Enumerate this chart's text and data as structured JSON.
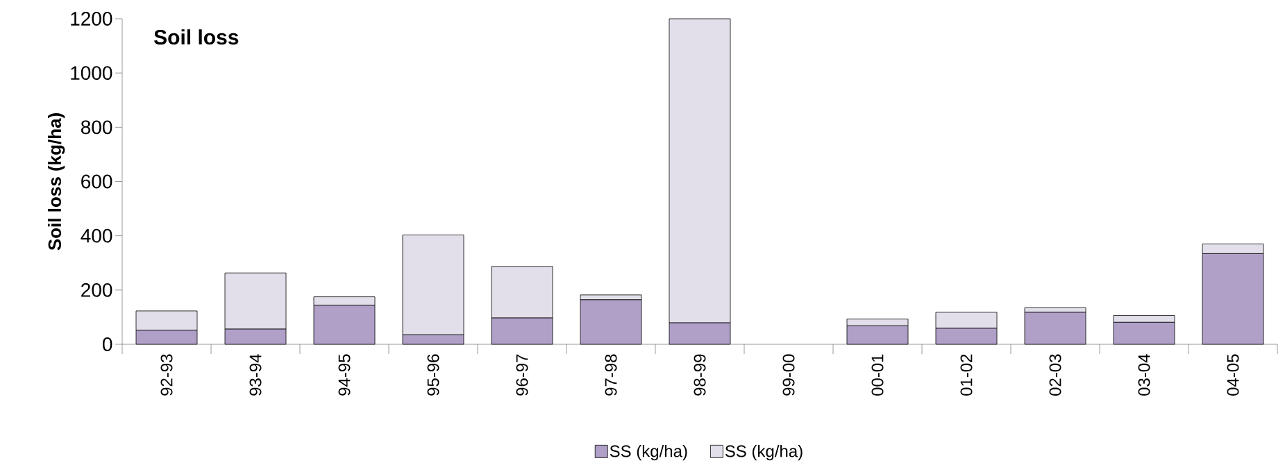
{
  "chart_data": {
    "type": "bar",
    "stacked": true,
    "title": "Soil loss",
    "ylabel": "Soil loss (kg/ha)",
    "categories": [
      "92-93",
      "93-94",
      "94-95",
      "95-96",
      "96-97",
      "97-98",
      "98-99",
      "99-00",
      "00-01",
      "01-02",
      "02-03",
      "03-04",
      "04-05"
    ],
    "series": [
      {
        "name": "SS (kg/ha)",
        "color": "#b0a0c8",
        "values": [
          52,
          56,
          144,
          35,
          97,
          164,
          79,
          0,
          68,
          59,
          118,
          81,
          334
        ]
      },
      {
        "name": "SS (kg/ha)",
        "color": "#e3dfea",
        "values": [
          71,
          207,
          31,
          368,
          190,
          18,
          1121,
          0,
          25,
          59,
          17,
          25,
          36
        ]
      }
    ],
    "ylim": [
      0,
      1200
    ],
    "yticks": [
      0,
      200,
      400,
      600,
      800,
      1000,
      1200
    ],
    "legend": "bottom"
  }
}
